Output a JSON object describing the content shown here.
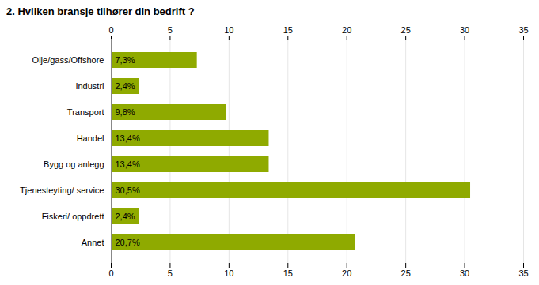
{
  "chart_data": {
    "type": "bar",
    "title": "2. Hvilken bransje tilhører din bedrift ?",
    "orientation": "horizontal",
    "categories": [
      "Olje/gass/Offshore",
      "Industri",
      "Transport",
      "Handel",
      "Bygg og anlegg",
      "Tjenesteyting/ service",
      "Fiskeri/ oppdrett",
      "Annet"
    ],
    "values": [
      7.3,
      2.4,
      9.8,
      13.4,
      13.4,
      30.5,
      2.4,
      20.7
    ],
    "value_labels": [
      "7,3%",
      "2,4%",
      "9,8%",
      "13,4%",
      "13,4%",
      "30,5%",
      "2,4%",
      "20,7%"
    ],
    "data_labels": true,
    "color": "#8faa00",
    "xlim": [
      0,
      35
    ],
    "xticks": [
      0,
      5,
      10,
      15,
      20,
      25,
      30,
      35
    ],
    "grid": true
  }
}
